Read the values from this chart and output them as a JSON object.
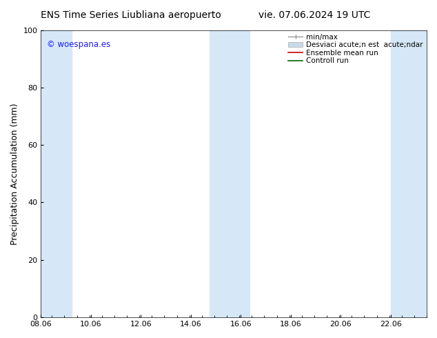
{
  "title_left": "ENS Time Series Liubliana aeropuerto",
  "title_right": "vie. 07.06.2024 19 UTC",
  "ylabel": "Precipitation Accumulation (mm)",
  "ylim": [
    0,
    100
  ],
  "yticks": [
    0,
    20,
    40,
    60,
    80,
    100
  ],
  "xlim_start": 8.06,
  "xlim_end": 23.5,
  "xtick_labels": [
    "08.06",
    "10.06",
    "12.06",
    "14.06",
    "16.06",
    "18.06",
    "20.06",
    "22.06"
  ],
  "xtick_positions": [
    8.06,
    10.06,
    12.06,
    14.06,
    16.06,
    18.06,
    20.06,
    22.06
  ],
  "watermark": "© woespana.es",
  "watermark_color": "#1a1aff",
  "background_color": "#ffffff",
  "plot_bg_color": "#ffffff",
  "shaded_bands": [
    {
      "x_start": 8.06,
      "x_end": 9.3,
      "color": "#d6e8f7"
    },
    {
      "x_start": 14.8,
      "x_end": 16.4,
      "color": "#d6e8f7"
    },
    {
      "x_start": 22.06,
      "x_end": 23.5,
      "color": "#d6e8f7"
    }
  ],
  "legend_label_minmax": "min/max",
  "legend_label_std": "Desviaci acute;n est  acute;ndar",
  "legend_label_ens": "Ensemble mean run",
  "legend_label_ctrl": "Controll run",
  "minmax_color": "#999999",
  "std_color": "#c8daea",
  "ens_color": "#cc0000",
  "ctrl_color": "#006600",
  "title_fontsize": 10,
  "label_fontsize": 9,
  "tick_fontsize": 8,
  "legend_fontsize": 7.5
}
